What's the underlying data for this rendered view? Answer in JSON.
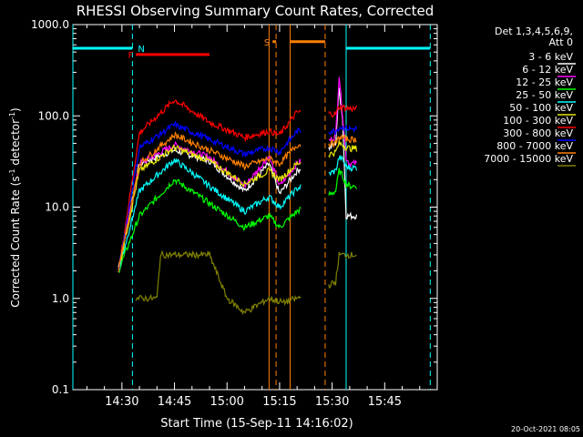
{
  "chart_data": {
    "type": "line",
    "title": "RHESSI Observing Summary Count Rates, Corrected",
    "xlabel": "Start Time (15-Sep-11 14:16:02)",
    "ylabel_main": "Corrected Count Rate (s",
    "ylabel_sup": "-1",
    "ylabel_mid": " detector",
    "ylabel_end": ")",
    "footer": "20-Oct-2021 08:05",
    "yscale": "log",
    "ylim": [
      0.1,
      1000
    ],
    "xlim": [
      "14:16",
      "16:00"
    ],
    "y_ticks": [
      "0.1",
      "1.0",
      "10.0",
      "100.0",
      "1000.0"
    ],
    "x_ticks": [
      "14:30",
      "14:45",
      "15:00",
      "15:15",
      "15:30",
      "15:45"
    ],
    "legend_header": [
      "Det 1,3,4,5,6,9,",
      "Att 0"
    ],
    "legend_position": "right",
    "data_gap": [
      "15:21",
      "15:29"
    ],
    "series": [
      {
        "name": "3 - 6 keV",
        "color": "#ffffff",
        "x": [
          "14:29",
          "14:35",
          "14:45",
          "14:55",
          "15:05",
          "15:12",
          "15:15",
          "15:20",
          "15:31",
          "15:32",
          "15:33",
          "15:34",
          "15:35",
          "15:37"
        ],
        "y": [
          2.2,
          30,
          42,
          32,
          15,
          30,
          14,
          25,
          50,
          200,
          90,
          8,
          8,
          8
        ]
      },
      {
        "name": "6 - 12 keV",
        "color": "#ff00ff",
        "x": [
          "14:29",
          "14:35",
          "14:45",
          "14:55",
          "15:05",
          "15:12",
          "15:15",
          "15:20",
          "15:31",
          "15:32",
          "15:33",
          "15:34",
          "15:35",
          "15:37"
        ],
        "y": [
          2,
          30,
          48,
          35,
          17,
          36,
          17,
          30,
          60,
          280,
          100,
          35,
          30,
          30
        ]
      },
      {
        "name": "12 - 25 keV",
        "color": "#00ff00",
        "x": [
          "14:29",
          "14:35",
          "14:45",
          "14:55",
          "15:05",
          "15:12",
          "15:15",
          "15:20",
          "15:31",
          "15:32",
          "15:33",
          "15:34",
          "15:35",
          "15:37"
        ],
        "y": [
          2,
          8,
          20,
          11,
          6,
          8,
          6,
          9,
          15,
          25,
          22,
          18,
          17,
          17
        ]
      },
      {
        "name": "25 - 50 keV",
        "color": "#00ffff",
        "x": [
          "14:29",
          "14:35",
          "14:45",
          "14:55",
          "15:05",
          "15:12",
          "15:15",
          "15:20",
          "15:31",
          "15:32",
          "15:33",
          "15:34",
          "15:35",
          "15:37"
        ],
        "y": [
          2,
          15,
          33,
          17,
          9,
          13,
          10,
          16,
          25,
          35,
          33,
          28,
          27,
          27
        ]
      },
      {
        "name": "50 - 100 keV",
        "color": "#e6e600",
        "x": [
          "14:29",
          "14:35",
          "14:45",
          "14:55",
          "15:05",
          "15:12",
          "15:15",
          "15:20",
          "15:31",
          "15:32",
          "15:33",
          "15:34",
          "15:35",
          "15:37"
        ],
        "y": [
          2,
          25,
          45,
          32,
          18,
          25,
          20,
          30,
          40,
          50,
          48,
          45,
          44,
          44
        ]
      },
      {
        "name": "100 - 300 keV",
        "color": "#ff0000",
        "x": [
          "14:29",
          "14:35",
          "14:45",
          "14:55",
          "15:05",
          "15:12",
          "15:15",
          "15:20",
          "15:31",
          "15:32",
          "15:33",
          "15:34",
          "15:35",
          "15:37"
        ],
        "y": [
          2,
          65,
          150,
          85,
          58,
          68,
          62,
          110,
          105,
          125,
          125,
          122,
          120,
          120
        ]
      },
      {
        "name": "300 - 800 keV",
        "color": "#0000ff",
        "x": [
          "14:29",
          "14:35",
          "14:45",
          "14:55",
          "15:05",
          "15:12",
          "15:15",
          "15:20",
          "15:31",
          "15:32",
          "15:33",
          "15:34",
          "15:35",
          "15:37"
        ],
        "y": [
          2,
          45,
          80,
          55,
          38,
          45,
          40,
          68,
          68,
          75,
          75,
          73,
          72,
          72
        ]
      },
      {
        "name": "800 - 7000 keV",
        "color": "#ff8000",
        "x": [
          "14:29",
          "14:35",
          "14:45",
          "14:55",
          "15:05",
          "15:12",
          "15:15",
          "15:20",
          "15:31",
          "15:32",
          "15:33",
          "15:34",
          "15:35",
          "15:37"
        ],
        "y": [
          2,
          30,
          62,
          42,
          28,
          34,
          30,
          48,
          50,
          58,
          58,
          56,
          55,
          55
        ]
      },
      {
        "name": "7000 - 15000 keV",
        "color": "#808000",
        "x": [
          "14:34",
          "14:40",
          "14:41",
          "14:48",
          "14:55",
          "15:00",
          "15:05",
          "15:12",
          "15:16",
          "15:20",
          "15:31",
          "15:32",
          "15:33",
          "15:34",
          "15:35",
          "15:37"
        ],
        "y": [
          1,
          1,
          3,
          3,
          3,
          1,
          0.7,
          1,
          0.9,
          1,
          1.5,
          3,
          3,
          3,
          3,
          3
        ]
      }
    ],
    "flag_bars": [
      {
        "label": "N",
        "color": "#00ffff",
        "y": 550,
        "ranges": [
          [
            "14:16",
            "14:33"
          ],
          [
            "15:34",
            "15:58"
          ]
        ]
      },
      {
        "label": "F",
        "color": "#ff0000",
        "y": 470,
        "ranges": [
          [
            "14:34",
            "14:55"
          ]
        ]
      },
      {
        "label": "S",
        "color": "#ff8000",
        "y": 650,
        "ranges": [
          [
            "15:13",
            "15:14"
          ],
          [
            "15:18",
            "15:28"
          ]
        ]
      }
    ],
    "vlines": [
      {
        "x": "14:16",
        "color": "#00ffff",
        "style": "solid"
      },
      {
        "x": "14:33",
        "color": "#00ffff",
        "style": "dashed"
      },
      {
        "x": "15:34",
        "color": "#00ffff",
        "style": "solid"
      },
      {
        "x": "15:58",
        "color": "#00ffff",
        "style": "dashed"
      },
      {
        "x": "15:12",
        "color": "#ff8000",
        "style": "solid"
      },
      {
        "x": "15:14",
        "color": "#ff8000",
        "style": "dashed"
      },
      {
        "x": "15:18",
        "color": "#ff8000",
        "style": "solid"
      },
      {
        "x": "15:28",
        "color": "#ff8000",
        "style": "dashed"
      }
    ]
  }
}
